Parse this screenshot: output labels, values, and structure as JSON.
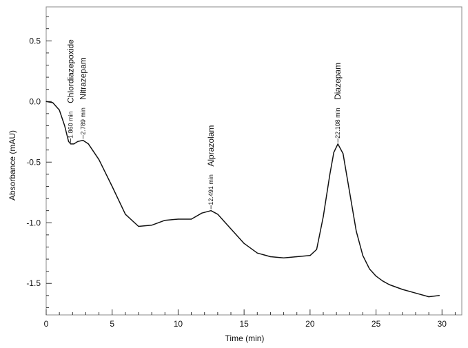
{
  "chart_data": {
    "type": "line",
    "title": "",
    "xlabel": "Time (min)",
    "ylabel": "Absorbance (mAU)",
    "xlim": [
      0,
      31.5
    ],
    "ylim": [
      -1.76,
      0.78
    ],
    "x_ticks": [
      0,
      5,
      10,
      15,
      20,
      25,
      30
    ],
    "x_tick_labels": [
      "0",
      "5",
      "10",
      "15",
      "20",
      "25",
      "30"
    ],
    "y_ticks": [
      0.5,
      0.0,
      -0.5,
      -1.0,
      -1.5
    ],
    "y_tick_labels": [
      "0.5",
      "0.0",
      "-0.5",
      "-1.0",
      "-1.5"
    ],
    "grid": false,
    "series": [
      {
        "x": [
          0,
          0.5,
          1.0,
          1.4,
          1.7,
          1.86,
          2.1,
          2.4,
          2.79,
          3.2,
          4.0,
          5.0,
          6.0,
          7.0,
          8.0,
          9.0,
          10.0,
          11.0,
          11.8,
          12.49,
          13.0,
          14.0,
          15.0,
          16.0,
          17.0,
          18.0,
          19.0,
          20.0,
          20.5,
          21.0,
          21.5,
          21.8,
          22.108,
          22.5,
          23.0,
          23.5,
          24.0,
          24.5,
          25.0,
          25.5,
          26.0,
          27.0,
          28.0,
          29.0,
          29.8
        ],
        "y": [
          0.0,
          -0.01,
          -0.07,
          -0.2,
          -0.33,
          -0.35,
          -0.35,
          -0.33,
          -0.32,
          -0.35,
          -0.48,
          -0.7,
          -0.93,
          -1.03,
          -1.02,
          -0.98,
          -0.97,
          -0.97,
          -0.92,
          -0.9,
          -0.93,
          -1.05,
          -1.17,
          -1.25,
          -1.28,
          -1.29,
          -1.28,
          -1.27,
          -1.22,
          -0.95,
          -0.6,
          -0.42,
          -0.35,
          -0.43,
          -0.75,
          -1.07,
          -1.27,
          -1.38,
          -1.44,
          -1.48,
          -1.51,
          -1.55,
          -1.58,
          -1.61,
          -1.6
        ]
      }
    ],
    "peaks": [
      {
        "time_label": "1.860 min",
        "name": "Chlordiazepoxide",
        "x": 1.86,
        "y": -0.35
      },
      {
        "time_label": "2.789 min",
        "name": "Nitrazepam",
        "x": 2.789,
        "y": -0.32
      },
      {
        "time_label": "12.491 min",
        "name": "Alprazolam",
        "x": 12.491,
        "y": -0.9
      },
      {
        "time_label": "22.108 min",
        "name": "Diazepam",
        "x": 22.108,
        "y": -0.35
      }
    ]
  }
}
